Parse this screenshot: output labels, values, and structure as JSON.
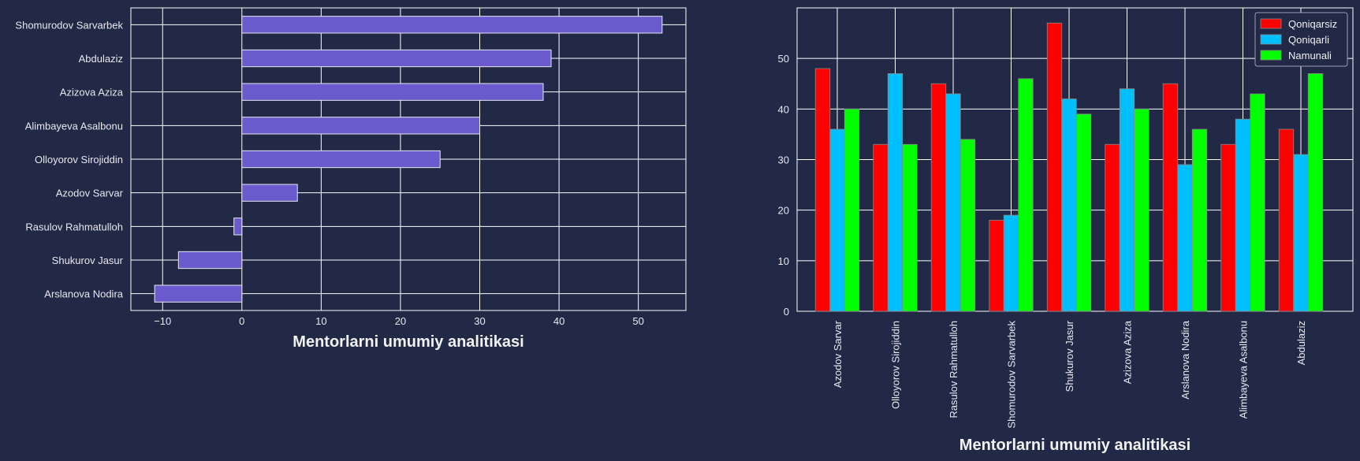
{
  "colors": {
    "background": "#212946",
    "grid": "#ffffff",
    "bar_edge": "#e8e8f0",
    "text": "#e8e8ee"
  },
  "chart_data": [
    {
      "type": "bar",
      "orientation": "horizontal",
      "categories": [
        "Shomurodov Sarvarbek",
        "Abdulaziz",
        "Azizova Aziza",
        "Alimbayeva Asalbonu",
        "Olloyorov Sirojiddin",
        "Azodov Sarvar",
        "Rasulov Rahmatulloh",
        "Shukurov Jasur",
        "Arslanova Nodira"
      ],
      "values": [
        53,
        39,
        38,
        30,
        25,
        7,
        -1,
        -8,
        -11
      ],
      "color": "#6a5acd",
      "xlabel": "Mentorlarni umumiy analitikasi",
      "ylabel": "",
      "xlim": [
        -14,
        56
      ],
      "xticks": [
        -10,
        0,
        10,
        20,
        30,
        40,
        50
      ],
      "grid": true
    },
    {
      "type": "bar",
      "orientation": "vertical",
      "categories": [
        "Azodov Sarvar",
        "Olloyorov Sirojiddin",
        "Rasulov Rahmatulloh",
        "Shomurodov Sarvarbek",
        "Shukurov Jasur",
        "Azizova Aziza",
        "Arslanova Nodira",
        "Alimbayeva Asalbonu",
        "Abdulaziz"
      ],
      "series": [
        {
          "name": "Qoniqarsiz",
          "color": "#ff0000",
          "values": [
            48,
            33,
            45,
            18,
            57,
            33,
            45,
            33,
            36
          ]
        },
        {
          "name": "Qoniqarli",
          "color": "#00bfff",
          "values": [
            36,
            47,
            43,
            19,
            42,
            44,
            29,
            38,
            31
          ]
        },
        {
          "name": "Namunali",
          "color": "#00ff00",
          "values": [
            40,
            33,
            34,
            46,
            39,
            40,
            36,
            43,
            47
          ]
        }
      ],
      "xlabel": "Mentorlarni umumiy analitikasi",
      "ylabel": "",
      "ylim": [
        0,
        60
      ],
      "yticks": [
        0,
        10,
        20,
        30,
        40,
        50
      ],
      "legend": "top-right",
      "grid": true
    }
  ]
}
